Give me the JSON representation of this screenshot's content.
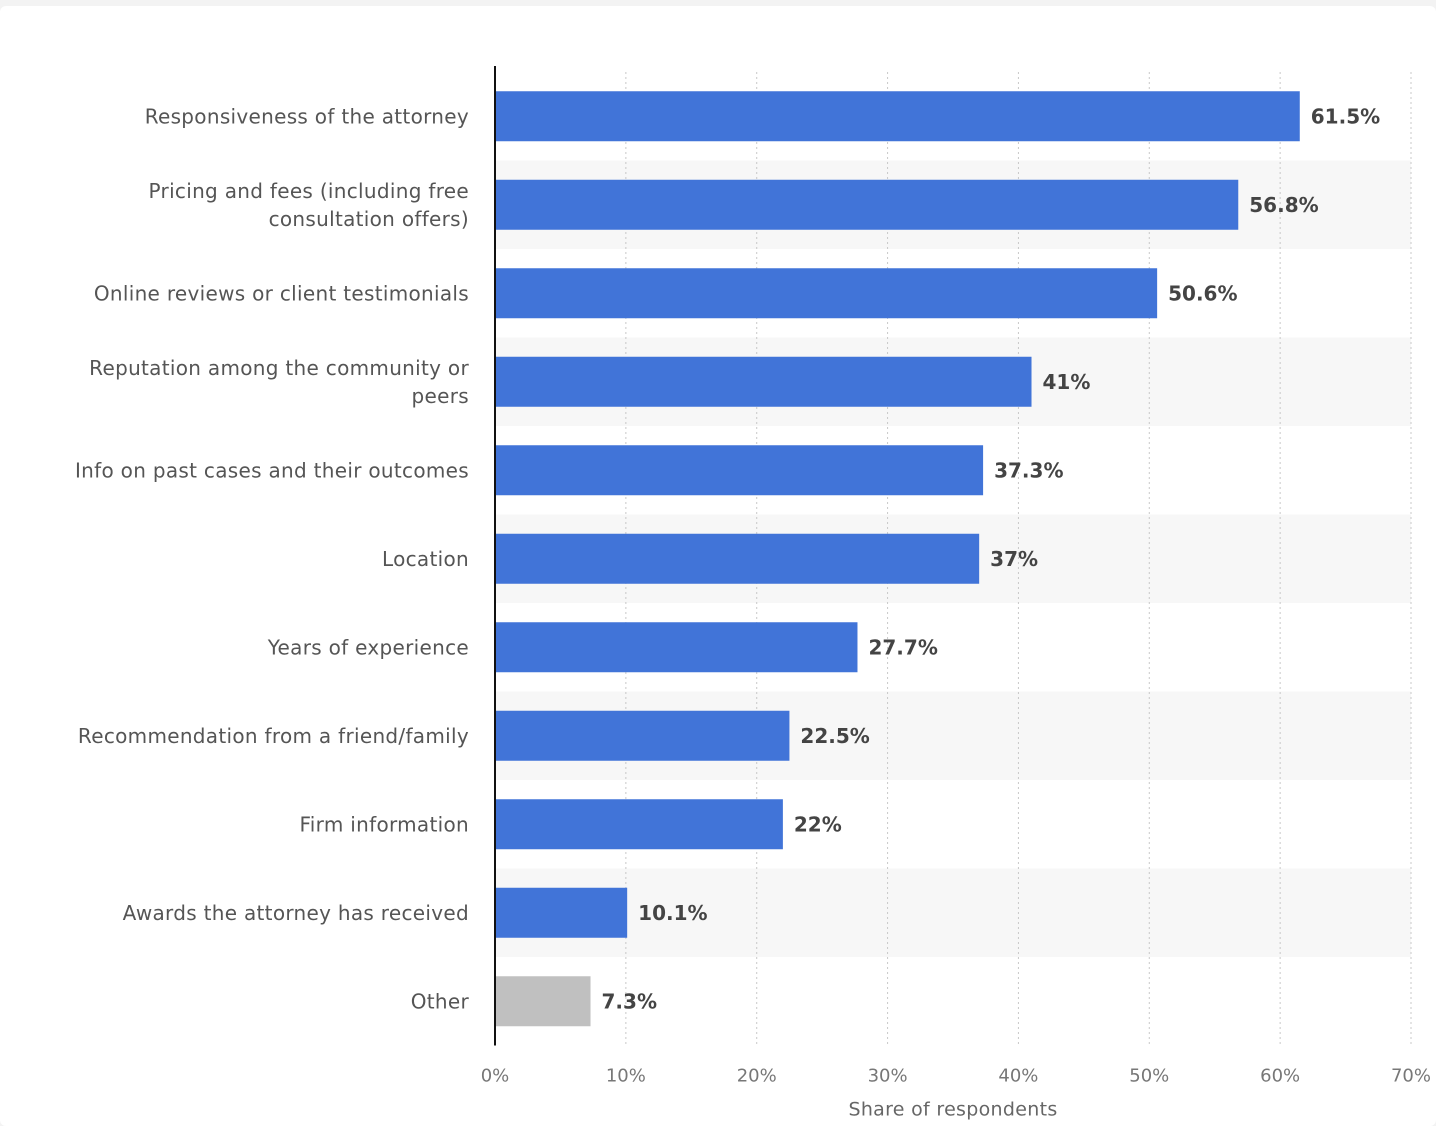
{
  "chart_data": {
    "type": "bar",
    "orientation": "horizontal",
    "categories": [
      [
        "Responsiveness of the attorney"
      ],
      [
        "Pricing and fees (including free",
        "consultation offers)"
      ],
      [
        "Online reviews or client testimonials"
      ],
      [
        "Reputation among the community or",
        "peers"
      ],
      [
        "Info on past cases and their outcomes"
      ],
      [
        "Location"
      ],
      [
        "Years of experience"
      ],
      [
        "Recommendation from a friend/family"
      ],
      [
        "Firm information"
      ],
      [
        "Awards the attorney has received"
      ],
      [
        "Other"
      ]
    ],
    "values": [
      61.5,
      56.8,
      50.6,
      41,
      37.3,
      37,
      27.7,
      22.5,
      22,
      10.1,
      7.3
    ],
    "value_labels": [
      "61.5%",
      "56.8%",
      "50.6%",
      "41%",
      "37.3%",
      "37%",
      "27.7%",
      "22.5%",
      "22%",
      "10.1%",
      "7.3%"
    ],
    "bar_colors": [
      "#4174d8",
      "#4174d8",
      "#4174d8",
      "#4174d8",
      "#4174d8",
      "#4174d8",
      "#4174d8",
      "#4174d8",
      "#4174d8",
      "#4174d8",
      "#c0c0c0"
    ],
    "xlabel": "Share of respondents",
    "xlim": [
      0,
      70
    ],
    "xticks": [
      0,
      10,
      20,
      30,
      40,
      50,
      60,
      70
    ],
    "xtick_labels": [
      "0%",
      "10%",
      "20%",
      "30%",
      "40%",
      "50%",
      "60%",
      "70%"
    ],
    "grid": true,
    "alternate_row_shading": "#f7f7f7"
  }
}
